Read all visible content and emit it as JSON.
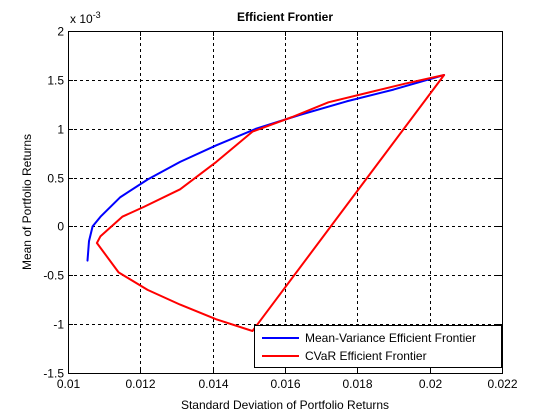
{
  "chart_data": {
    "type": "line",
    "title": "Efficient Frontier",
    "xlabel": "Standard Deviation of Portfolio Returns",
    "ylabel": "Mean of Portfolio Returns",
    "y_multiplier_label": "x 10",
    "y_multiplier_exponent": "-3",
    "xlim": [
      0.01,
      0.022
    ],
    "ylim": [
      -1.5,
      2
    ],
    "xticks": [
      0.01,
      0.012,
      0.014,
      0.016,
      0.018,
      0.02,
      0.022
    ],
    "xtick_labels": [
      "0.01",
      "0.012",
      "0.014",
      "0.016",
      "0.018",
      "0.02",
      "0.022"
    ],
    "yticks": [
      -1.5,
      -1,
      -0.5,
      0,
      0.5,
      1,
      1.5,
      2
    ],
    "ytick_labels": [
      "-1.5",
      "-1",
      "-0.5",
      "0",
      "0.5",
      "1",
      "1.5",
      "2"
    ],
    "grid": true,
    "legend_position": "bottom-right",
    "series": [
      {
        "name": "Mean-Variance Efficient Frontier",
        "color": "#0000ff",
        "x": [
          0.01054,
          0.01058,
          0.01068,
          0.0109,
          0.01145,
          0.0122,
          0.0131,
          0.0141,
          0.0152,
          0.0164,
          0.0177,
          0.019,
          0.0204
        ],
        "y": [
          -0.35,
          -0.15,
          0.0,
          0.1,
          0.3,
          0.48,
          0.66,
          0.83,
          1.0,
          1.14,
          1.28,
          1.4,
          1.55
        ]
      },
      {
        "name": "CVaR Efficient Frontier",
        "color": "#ff0000",
        "x": [
          0.0108,
          0.0109,
          0.0115,
          0.0121,
          0.0131,
          0.0141,
          0.0151,
          0.0162,
          0.0172,
          0.0183,
          0.0193,
          0.0204,
          0.0151,
          0.0141,
          0.0131,
          0.0122,
          0.0114,
          0.0108
        ],
        "y": [
          -0.17,
          -0.1,
          0.1,
          0.2,
          0.38,
          0.66,
          0.97,
          1.12,
          1.27,
          1.37,
          1.46,
          1.55,
          -1.07,
          -0.95,
          -0.8,
          -0.65,
          -0.47,
          -0.17
        ]
      }
    ]
  }
}
